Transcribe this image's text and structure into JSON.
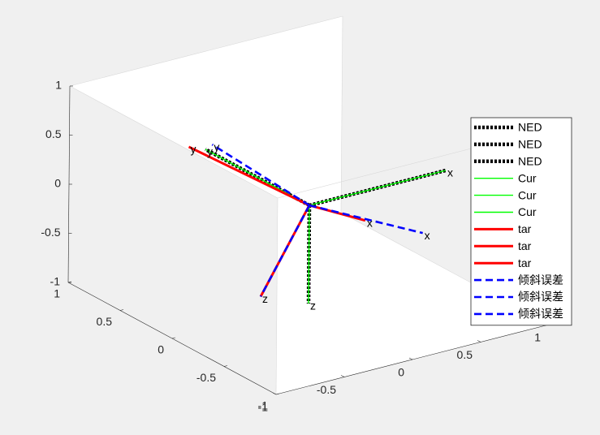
{
  "chart_data": {
    "type": "line",
    "title": "",
    "xlabel": "",
    "ylabel": "",
    "zlabel": "",
    "view": "3d",
    "grid": false,
    "box": true,
    "xlim": [
      -1,
      1
    ],
    "ylim": [
      -1,
      1
    ],
    "zlim": [
      -1,
      1
    ],
    "x_ticks": [
      {
        "value": -1,
        "label": "-1"
      },
      {
        "value": -0.5,
        "label": "-0.5"
      },
      {
        "value": 0,
        "label": "0"
      },
      {
        "value": 0.5,
        "label": "0.5"
      },
      {
        "value": 1,
        "label": "1"
      }
    ],
    "y_ticks": [
      {
        "value": -1,
        "label": "-1"
      },
      {
        "value": -0.5,
        "label": "-0.5"
      },
      {
        "value": 0,
        "label": "0"
      },
      {
        "value": 0.5,
        "label": "0.5"
      },
      {
        "value": 1,
        "label": "1"
      }
    ],
    "z_ticks": [
      {
        "value": -1,
        "label": "-1"
      },
      {
        "value": -0.5,
        "label": "-0.5"
      },
      {
        "value": 0,
        "label": "0"
      },
      {
        "value": 0.5,
        "label": "0.5"
      },
      {
        "value": 1,
        "label": "1"
      }
    ],
    "legend_position": "right",
    "series": [
      {
        "name": "NED",
        "color": "#000000",
        "style": "dotted",
        "axis": "x",
        "end": [
          1,
          0,
          0
        ],
        "label": "x"
      },
      {
        "name": "NED",
        "color": "#000000",
        "style": "dotted",
        "axis": "y",
        "end": [
          0,
          1,
          0
        ],
        "label": "y"
      },
      {
        "name": "NED",
        "color": "#000000",
        "style": "dotted",
        "axis": "z",
        "end": [
          0,
          0,
          -1
        ],
        "label": "z"
      },
      {
        "name": "Cur",
        "color": "#00ff00",
        "style": "solid",
        "axis": "x",
        "end": [
          1,
          0,
          0
        ],
        "label": "x"
      },
      {
        "name": "Cur",
        "color": "#00ff00",
        "style": "solid",
        "axis": "y",
        "end": [
          0,
          1,
          0
        ],
        "label": "y"
      },
      {
        "name": "Cur",
        "color": "#00ff00",
        "style": "solid",
        "axis": "z",
        "end": [
          0,
          0,
          -1
        ],
        "label": "z"
      },
      {
        "name": "tar",
        "color": "#ff0000",
        "style": "solid",
        "axis": "x",
        "end": [
          0.22,
          -0.25,
          -0.09
        ],
        "label": "x"
      },
      {
        "name": "tar",
        "color": "#ff0000",
        "style": "solid",
        "axis": "y",
        "end": [
          -0.36,
          0.69,
          0.33
        ],
        "label": "y"
      },
      {
        "name": "tar",
        "color": "#ff0000",
        "style": "solid",
        "axis": "z",
        "end": [
          -0.82,
          -0.61,
          -0.29
        ],
        "label": "z"
      },
      {
        "name": "倾斜误差",
        "color": "#0000ff",
        "style": "dashed",
        "axis": "x",
        "end": [
          0.39,
          -0.58,
          -0.09
        ],
        "label": "x"
      },
      {
        "name": "倾斜误差",
        "color": "#0000ff",
        "style": "dashed",
        "axis": "y",
        "end": [
          -0.15,
          0.74,
          0.25
        ],
        "label": "y"
      },
      {
        "name": "倾斜误差",
        "color": "#0000ff",
        "style": "dashed",
        "axis": "z",
        "end": [
          -0.82,
          -0.61,
          -0.29
        ],
        "label": "z"
      }
    ]
  }
}
